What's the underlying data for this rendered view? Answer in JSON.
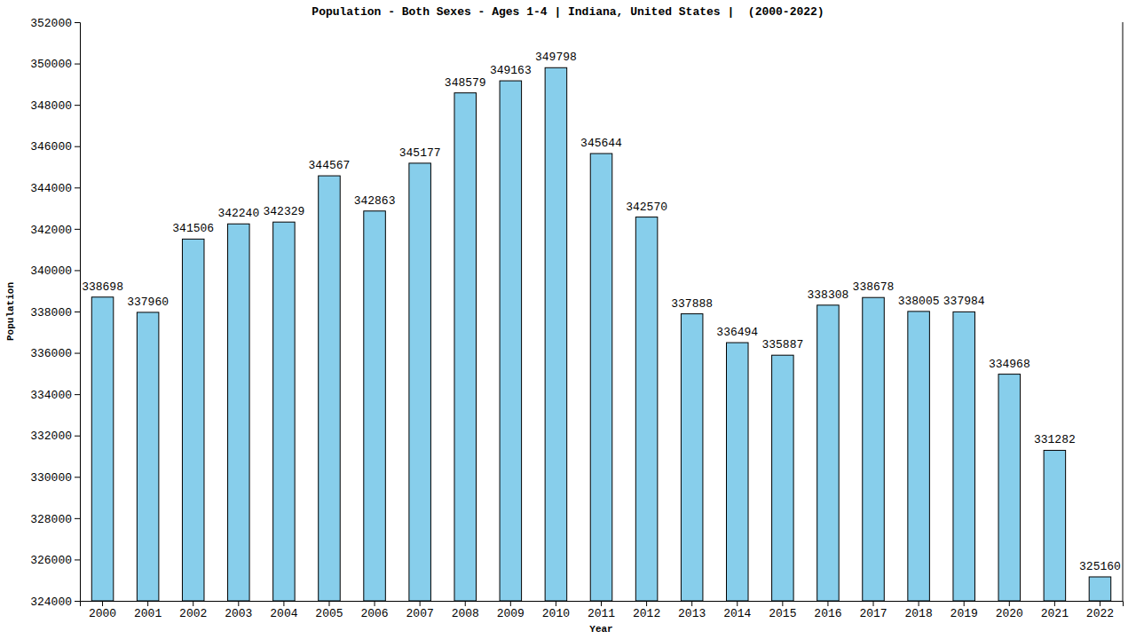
{
  "chart_data": {
    "type": "bar",
    "title": "Population - Both Sexes - Ages 1-4 | Indiana, United States |  (2000-2022)",
    "x_label": "Year",
    "y_label": "Population",
    "categories": [
      "2000",
      "2001",
      "2002",
      "2003",
      "2004",
      "2005",
      "2006",
      "2007",
      "2008",
      "2009",
      "2010",
      "2011",
      "2012",
      "2013",
      "2014",
      "2015",
      "2016",
      "2017",
      "2018",
      "2019",
      "2020",
      "2021",
      "2022"
    ],
    "values": [
      338698,
      337960,
      341506,
      342240,
      342329,
      344567,
      342863,
      345177,
      348579,
      349163,
      349798,
      345644,
      342570,
      337888,
      336494,
      335887,
      338308,
      338678,
      338005,
      337984,
      334968,
      331282,
      325160
    ],
    "color": "#87ceeb",
    "ylim": [
      324000,
      352000
    ],
    "yticks": [
      324000,
      326000,
      328000,
      330000,
      332000,
      334000,
      336000,
      338000,
      340000,
      342000,
      344000,
      346000,
      348000,
      350000,
      352000
    ],
    "grid": false,
    "data_labels": true
  }
}
